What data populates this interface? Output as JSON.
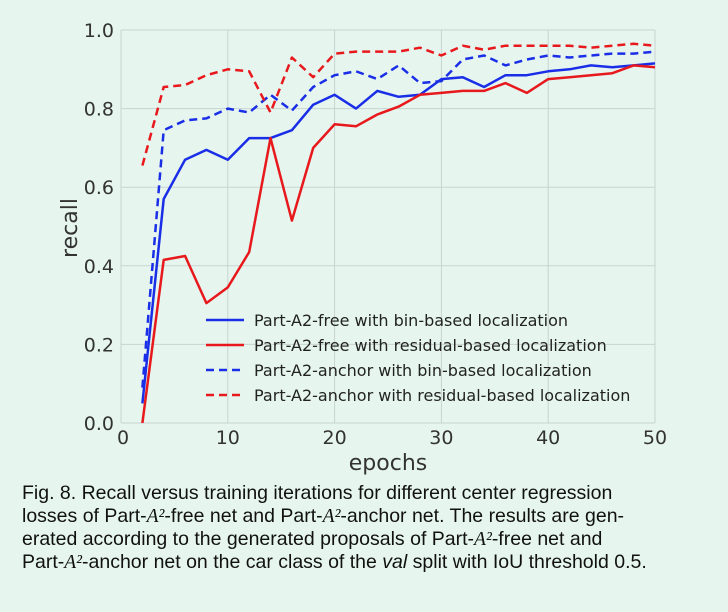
{
  "chart_data": {
    "type": "line",
    "xlabel": "epochs",
    "ylabel": "recall",
    "xlim": [
      0,
      50
    ],
    "ylim": [
      0.0,
      1.0
    ],
    "xticks": [
      "0",
      "10",
      "20",
      "30",
      "40",
      "50"
    ],
    "yticks": [
      "0.0",
      "0.2",
      "0.4",
      "0.6",
      "0.8",
      "1.0"
    ],
    "grid": true,
    "legend_position": "lower-right",
    "series": [
      {
        "name": "Part-A2-free with bin-based localization",
        "color": "#1a2ee8",
        "dash": "solid",
        "x": [
          2,
          4,
          6,
          8,
          10,
          12,
          14,
          16,
          18,
          20,
          22,
          24,
          26,
          28,
          30,
          32,
          34,
          36,
          38,
          40,
          42,
          44,
          46,
          48,
          50
        ],
        "values": [
          0.05,
          0.57,
          0.67,
          0.695,
          0.67,
          0.725,
          0.725,
          0.745,
          0.81,
          0.835,
          0.8,
          0.845,
          0.83,
          0.835,
          0.875,
          0.88,
          0.855,
          0.885,
          0.885,
          0.895,
          0.9,
          0.91,
          0.905,
          0.91,
          0.915
        ]
      },
      {
        "name": "Part-A2-free with residual-based localization",
        "color": "#e8191d",
        "dash": "solid",
        "x": [
          2,
          4,
          6,
          8,
          10,
          12,
          14,
          16,
          18,
          20,
          22,
          24,
          26,
          28,
          30,
          32,
          34,
          36,
          38,
          40,
          42,
          44,
          46,
          48,
          50
        ],
        "values": [
          0.0,
          0.415,
          0.425,
          0.305,
          0.345,
          0.435,
          0.725,
          0.515,
          0.7,
          0.76,
          0.755,
          0.785,
          0.805,
          0.835,
          0.84,
          0.845,
          0.845,
          0.865,
          0.84,
          0.875,
          0.88,
          0.885,
          0.89,
          0.91,
          0.905
        ]
      },
      {
        "name": "Part-A2-anchor with bin-based localization",
        "color": "#1a2ee8",
        "dash": "dashed",
        "x": [
          2,
          4,
          6,
          8,
          10,
          12,
          14,
          16,
          18,
          20,
          22,
          24,
          26,
          28,
          30,
          32,
          34,
          36,
          38,
          40,
          42,
          44,
          46,
          48,
          50
        ],
        "values": [
          0.09,
          0.745,
          0.77,
          0.775,
          0.8,
          0.79,
          0.835,
          0.795,
          0.855,
          0.885,
          0.895,
          0.875,
          0.91,
          0.865,
          0.87,
          0.925,
          0.935,
          0.91,
          0.925,
          0.935,
          0.93,
          0.935,
          0.94,
          0.94,
          0.945
        ]
      },
      {
        "name": "Part-A2-anchor with residual-based localization",
        "color": "#e8191d",
        "dash": "dashed",
        "x": [
          2,
          4,
          6,
          8,
          10,
          12,
          14,
          16,
          18,
          20,
          22,
          24,
          26,
          28,
          30,
          32,
          34,
          36,
          38,
          40,
          42,
          44,
          46,
          48,
          50
        ],
        "values": [
          0.655,
          0.855,
          0.86,
          0.885,
          0.9,
          0.895,
          0.79,
          0.93,
          0.88,
          0.94,
          0.945,
          0.945,
          0.945,
          0.955,
          0.935,
          0.96,
          0.95,
          0.96,
          0.96,
          0.96,
          0.96,
          0.955,
          0.96,
          0.965,
          0.96
        ]
      }
    ]
  },
  "caption": {
    "line1": "Fig. 8. Recall versus training iterations for different center regression",
    "line2_a": "losses of Part-",
    "line2_m1": "A²",
    "line2_b": "-free net and Part-",
    "line2_m2": "A²",
    "line2_c": "-anchor net. The results are gen-",
    "line3_a": "erated according to the generated proposals of Part-",
    "line3_m1": "A²",
    "line3_b": "-free net and",
    "line4_a": "Part-",
    "line4_m1": "A²",
    "line4_b": "-anchor net on the car class of the ",
    "line4_i": "val",
    "line4_c": " split with IoU threshold 0.5."
  }
}
